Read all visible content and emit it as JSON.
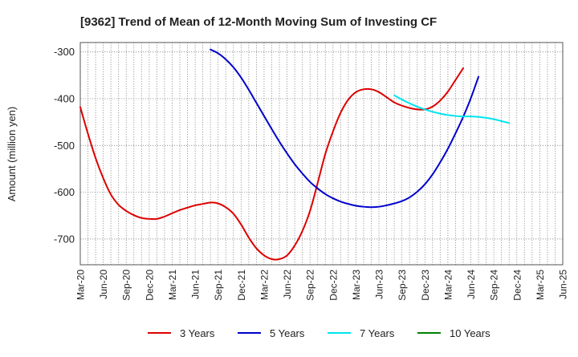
{
  "chart_data": {
    "type": "line",
    "title": "[9362]  Trend of Mean of 12-Month Moving Sum of Investing CF",
    "xlabel": "",
    "ylabel": "Amount (million yen)",
    "ylim": [
      -755,
      -280
    ],
    "yticks": [
      -300,
      -400,
      -500,
      -600,
      -700
    ],
    "x_range": [
      "Mar-20",
      "Jun-25"
    ],
    "x_tick_labels": [
      "Mar-20",
      "Jun-20",
      "Sep-20",
      "Dec-20",
      "Mar-21",
      "Jun-21",
      "Sep-21",
      "Dec-21",
      "Mar-22",
      "Jun-22",
      "Sep-22",
      "Dec-22",
      "Mar-23",
      "Jun-23",
      "Sep-23",
      "Dec-23",
      "Mar-24",
      "Jun-24",
      "Sep-24",
      "Dec-24",
      "Mar-25",
      "Jun-25"
    ],
    "grid": true,
    "legend_position": "bottom",
    "series": [
      {
        "name": "3 Years",
        "color": "#dd0000",
        "start": "Mar-20",
        "values": [
          -418,
          -475,
          -527,
          -570,
          -605,
          -627,
          -640,
          -649,
          -655,
          -657,
          -657,
          -652,
          -645,
          -638,
          -633,
          -628,
          -625,
          -622,
          -624,
          -632,
          -646,
          -669,
          -697,
          -720,
          -735,
          -743,
          -743,
          -735,
          -714,
          -683,
          -640,
          -580,
          -518,
          -470,
          -430,
          -402,
          -386,
          -380,
          -380,
          -386,
          -397,
          -408,
          -415,
          -420,
          -423,
          -423,
          -417,
          -404,
          -385,
          -360,
          -335
        ]
      },
      {
        "name": "5 Years",
        "color": "#0000cc",
        "start": "Aug-21",
        "values": [
          -295,
          -303,
          -316,
          -333,
          -355,
          -381,
          -409,
          -437,
          -465,
          -492,
          -517,
          -540,
          -560,
          -578,
          -592,
          -604,
          -613,
          -620,
          -625,
          -629,
          -631,
          -632,
          -631,
          -628,
          -624,
          -619,
          -611,
          -599,
          -583,
          -562,
          -536,
          -507,
          -474,
          -439,
          -399,
          -353
        ]
      },
      {
        "name": "7 Years",
        "color": "#00e5ee",
        "start": "Aug-23",
        "values": [
          -393,
          -402,
          -410,
          -417,
          -423,
          -428,
          -432,
          -435,
          -437,
          -438,
          -438,
          -439,
          -441,
          -444,
          -448,
          -452
        ]
      },
      {
        "name": "10 Years",
        "color": "#008000",
        "start": "Mar-20",
        "values": []
      }
    ]
  }
}
